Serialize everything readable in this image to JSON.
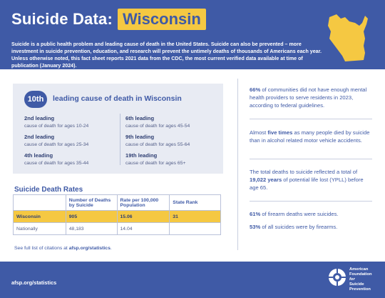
{
  "header": {
    "title": "Suicide Data:",
    "state": "Wisconsin",
    "intro": "Suicide is a public health problem and leading cause of death in the United States. Suicide can also be prevented – more investment in suicide prevention, education, and research will prevent the untimely deaths of thousands of Americans each year. Unless otherwise noted, this fact sheet reports 2021 data from the CDC, the most current verified data available at time of publication (January 2024)."
  },
  "ranking": {
    "badge": "10th",
    "headline": "leading cause of death in Wisconsin",
    "items": [
      {
        "title": "2nd leading",
        "sub": "cause of death for ages 10-24"
      },
      {
        "title": "2nd leading",
        "sub": "cause of death for ages 25-34"
      },
      {
        "title": "4th leading",
        "sub": "cause of death for ages 35-44"
      },
      {
        "title": "6th leading",
        "sub": "cause of death for ages 45-54"
      },
      {
        "title": "9th leading",
        "sub": "cause of death for ages 55-64"
      },
      {
        "title": "19th leading",
        "sub": "cause of death for ages 65+"
      }
    ]
  },
  "table": {
    "title": "Suicide Death Rates",
    "headers": [
      "",
      "Number of Deaths by Suicide",
      "Rate per 100,000 Population",
      "State Rank"
    ],
    "rows": [
      [
        "Wisconsin",
        "905",
        "15.06",
        "31"
      ],
      [
        "Nationally",
        "48,183",
        "14.04",
        ""
      ]
    ]
  },
  "citation": {
    "prefix": "See full list of citations at ",
    "link": "afsp.org/statistics",
    "suffix": "."
  },
  "facts": {
    "f1": {
      "hl": "66%",
      "rest": " of communities did not have enough mental health providers to serve residents in 2023, according to federal guidelines."
    },
    "f2": {
      "pre": "Almost ",
      "hl": "five times",
      "rest": " as many people died by suicide than in alcohol related motor vehicle accidents."
    },
    "f3": {
      "pre": "The total deaths to suicide reflected a total of ",
      "hl": "19,022 years",
      "rest": " of potential life lost (YPLL) before age 65."
    },
    "f4": {
      "hl": "61%",
      "rest": " of firearm deaths were suicides."
    },
    "f5": {
      "hl": "53%",
      "rest": " of all suicides were by firearms."
    }
  },
  "footer": {
    "url": "afsp.org/statistics",
    "org_line1": "American",
    "org_line2": "Foundation",
    "org_line3": "for",
    "org_line4": "Suicide",
    "org_line5": "Prevention"
  },
  "colors": {
    "brand_blue": "#3f5aa6",
    "accent_yellow": "#f5c842",
    "panel_gray": "#e8ebf3"
  }
}
